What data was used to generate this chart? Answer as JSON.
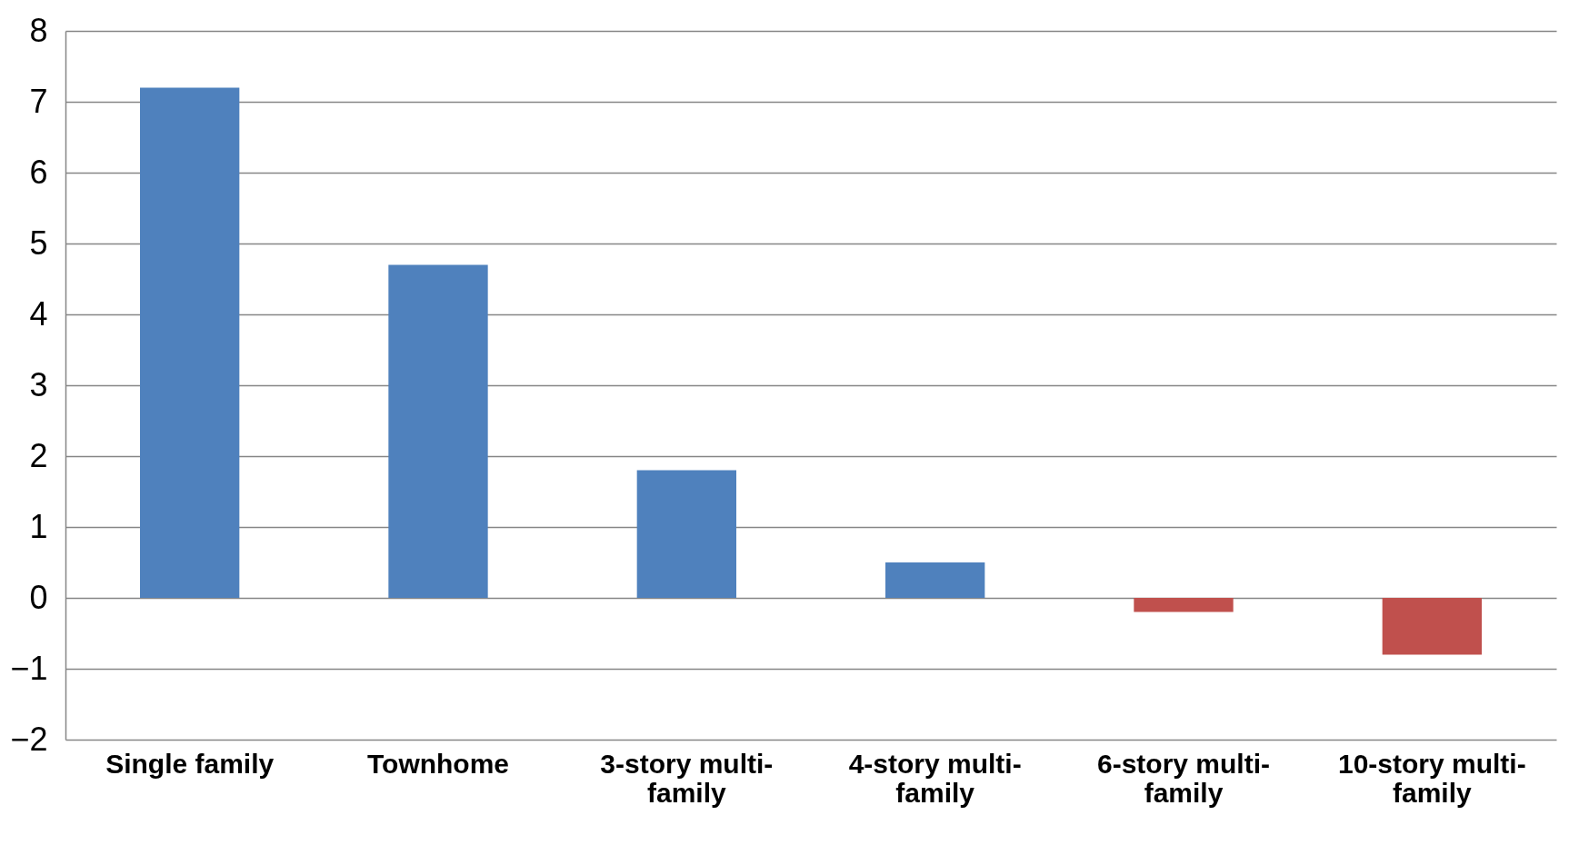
{
  "chart_data": {
    "type": "bar",
    "categories": [
      "Single family",
      "Townhome",
      "3-story multi-family",
      "4-story multi-family",
      "6-story multi-family",
      "10-story multi-family"
    ],
    "values": [
      7.2,
      4.7,
      1.8,
      0.5,
      -0.2,
      -0.8
    ],
    "colors": [
      "#4f81bd",
      "#4f81bd",
      "#4f81bd",
      "#4f81bd",
      "#c0504d",
      "#c0504d"
    ],
    "ylim": [
      -2,
      8
    ],
    "yticks": [
      -2,
      -1,
      0,
      1,
      2,
      3,
      4,
      5,
      6,
      7,
      8
    ],
    "grid": "y"
  }
}
